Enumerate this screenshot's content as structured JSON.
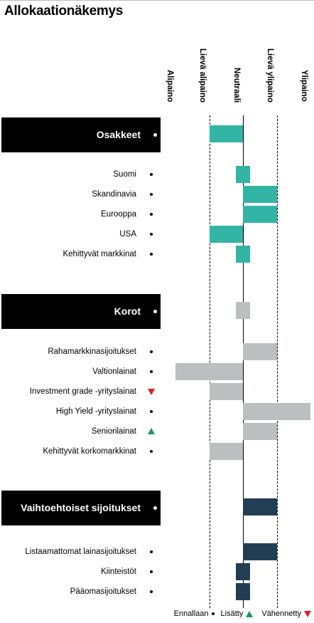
{
  "title": "Allokaationäkemys",
  "chart_data": {
    "type": "bar",
    "scale": [
      "Alipaino",
      "Lievä alipaino",
      "Neutraali",
      "Lievä ylipaino",
      "Ylipaino"
    ],
    "xlim": [
      -2,
      2
    ],
    "colors": {
      "Osakkeet": "#33b5a5",
      "Korot": "#bcbfbf",
      "Vaihtoehtoiset sijoitukset": "#223e55"
    },
    "groups": [
      {
        "name": "Osakkeet",
        "change": "unchanged",
        "value": -1,
        "items": [
          {
            "name": "Suomi",
            "change": "unchanged",
            "value": -0.4
          },
          {
            "name": "Skandinavia",
            "change": "unchanged",
            "value": 1
          },
          {
            "name": "Eurooppa",
            "change": "unchanged",
            "value": 1
          },
          {
            "name": "USA",
            "change": "unchanged",
            "value": -1
          },
          {
            "name": "Kehittyvät markkinat",
            "change": "unchanged",
            "value": -0.4
          }
        ]
      },
      {
        "name": "Korot",
        "change": "unchanged",
        "value": -0.4,
        "items": [
          {
            "name": "Rahamarkkinasijoitukset",
            "change": "unchanged",
            "value": 1
          },
          {
            "name": "Valtionlainat",
            "change": "unchanged",
            "value": -2
          },
          {
            "name": "Investment grade -yrityslainat",
            "change": "decreased",
            "value": -1
          },
          {
            "name": "High Yield -yrityslainat",
            "change": "unchanged",
            "value": 2
          },
          {
            "name": "Seniorilainat",
            "change": "increased",
            "value": 1
          },
          {
            "name": "Kehittyvät korkomarkkinat",
            "change": "unchanged",
            "value": -1
          }
        ]
      },
      {
        "name": "Vaihtoehtoiset sijoitukset",
        "change": "unchanged",
        "value": 1,
        "items": [
          {
            "name": "Listaamattomat lainasijoitukset",
            "change": "unchanged",
            "value": 1
          },
          {
            "name": "Kiinteistöt",
            "change": "unchanged",
            "value": -0.4
          },
          {
            "name": "Pääomasijoitukset",
            "change": "unchanged",
            "value": -0.4
          }
        ]
      }
    ]
  },
  "legend": {
    "unchanged": "Ennallaan",
    "increased": "Lisätty",
    "decreased": "Vähennetty"
  }
}
